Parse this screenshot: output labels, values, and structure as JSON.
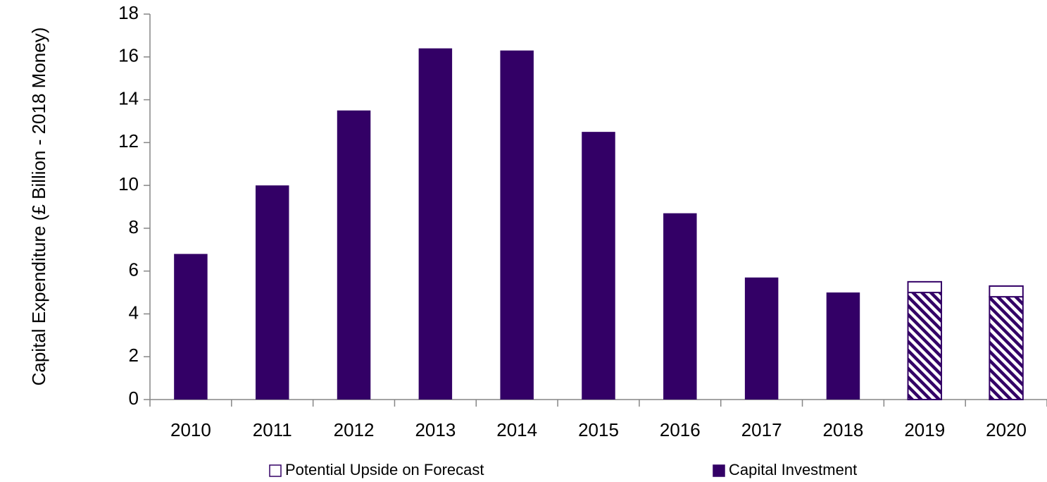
{
  "chart_data": {
    "type": "stacked_bar",
    "ylabel": "Capital Expenditure (£ Billion - 2018 Money)",
    "categories": [
      "2010",
      "2011",
      "2012",
      "2013",
      "2014",
      "2015",
      "2016",
      "2017",
      "2018",
      "2019",
      "2020"
    ],
    "series": [
      {
        "name": "Capital Investment",
        "color": "#330066",
        "values": [
          6.8,
          10.0,
          13.5,
          16.4,
          16.3,
          12.5,
          8.7,
          5.7,
          5.0,
          5.0,
          4.8
        ],
        "hatched": [
          false,
          false,
          false,
          false,
          false,
          false,
          false,
          false,
          false,
          true,
          true
        ]
      },
      {
        "name": "Potential Upside on Forecast",
        "color": "#ffffff",
        "edgecolor": "#330066",
        "values": [
          null,
          null,
          null,
          null,
          null,
          null,
          null,
          null,
          null,
          0.5,
          0.5
        ]
      }
    ],
    "legend_order": [
      1,
      0
    ],
    "legend": "bottom",
    "ylim": [
      0,
      18
    ],
    "yticks": [
      0,
      2,
      4,
      6,
      8,
      10,
      12,
      14,
      16,
      18
    ]
  }
}
